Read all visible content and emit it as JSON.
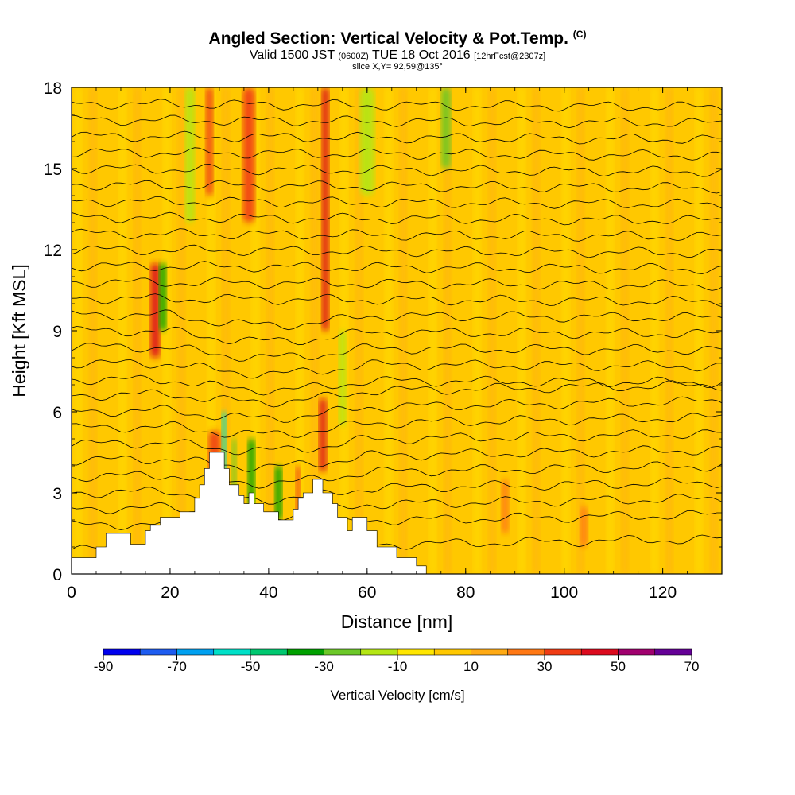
{
  "header": {
    "title": "Angled Section: Vertical Velocity & Pot.Temp.",
    "title_unit": "(C)",
    "subtitle_main_a": "Valid 1500 JST",
    "subtitle_small_a": "(0600Z)",
    "subtitle_main_b": "TUE 18 Oct 2016",
    "subtitle_small_b": "[12hrFcst@2307z]",
    "slice": "slice X,Y= 92,59@135°"
  },
  "chart_data": {
    "type": "heatmap",
    "title": "Angled Section: Vertical Velocity & Pot.Temp.",
    "xlabel": "Distance [nm]",
    "ylabel": "Height [Kft MSL]",
    "xlim": [
      0,
      132
    ],
    "ylim": [
      0,
      18
    ],
    "x_ticks": [
      "0",
      "20",
      "40",
      "60",
      "80",
      "100",
      "120"
    ],
    "x_tick_values": [
      0,
      20,
      40,
      60,
      80,
      100,
      120
    ],
    "y_ticks": [
      "0",
      "3",
      "6",
      "9",
      "12",
      "15",
      "18"
    ],
    "y_tick_values": [
      0,
      3,
      6,
      9,
      12,
      15,
      18
    ],
    "colorbar": {
      "title": "Vertical Velocity [cm/s]",
      "labels": [
        "-90",
        "-70",
        "-50",
        "-30",
        "-10",
        "10",
        "30",
        "50",
        "70"
      ],
      "label_values": [
        -90,
        -70,
        -50,
        -30,
        -10,
        10,
        30,
        50,
        70
      ],
      "bins": [
        {
          "from": -90,
          "to": -80,
          "color": "#0000ee"
        },
        {
          "from": -80,
          "to": -70,
          "color": "#1e5cf0"
        },
        {
          "from": -70,
          "to": -60,
          "color": "#00a0f0"
        },
        {
          "from": -60,
          "to": -50,
          "color": "#00e0c8"
        },
        {
          "from": -50,
          "to": -40,
          "color": "#00c870"
        },
        {
          "from": -40,
          "to": -30,
          "color": "#00a000"
        },
        {
          "from": -30,
          "to": -20,
          "color": "#6cc828"
        },
        {
          "from": -20,
          "to": -10,
          "color": "#b4e614"
        },
        {
          "from": -10,
          "to": 0,
          "color": "#ffe600"
        },
        {
          "from": 0,
          "to": 10,
          "color": "#ffc800"
        },
        {
          "from": 10,
          "to": 20,
          "color": "#ffaa14"
        },
        {
          "from": 20,
          "to": 30,
          "color": "#ff7814"
        },
        {
          "from": 30,
          "to": 40,
          "color": "#f03c14"
        },
        {
          "from": 40,
          "to": 50,
          "color": "#dc0a1e"
        },
        {
          "from": 50,
          "to": 60,
          "color": "#a0006e"
        },
        {
          "from": 60,
          "to": 70,
          "color": "#640096"
        }
      ]
    },
    "background_value_color": "#ffc800",
    "features": [
      {
        "x": 17,
        "y0": 8.0,
        "y1": 11.5,
        "w": 2.0,
        "value": 45
      },
      {
        "x": 18.5,
        "y0": 9.0,
        "y1": 11.5,
        "w": 1.5,
        "value": -35
      },
      {
        "x": 24,
        "y0": 13.0,
        "y1": 18,
        "w": 2.0,
        "value": -15
      },
      {
        "x": 28,
        "y0": 14.0,
        "y1": 18,
        "w": 1.5,
        "value": 35
      },
      {
        "x": 29,
        "y0": 2.5,
        "y1": 5.3,
        "w": 2.5,
        "value": 35
      },
      {
        "x": 31,
        "y0": 3.5,
        "y1": 6.0,
        "w": 1.0,
        "value": -60
      },
      {
        "x": 33,
        "y0": 2.5,
        "y1": 5.0,
        "w": 1.0,
        "value": -25
      },
      {
        "x": 36.5,
        "y0": 2.5,
        "y1": 5.0,
        "w": 1.5,
        "value": -40
      },
      {
        "x": 36,
        "y0": 13.0,
        "y1": 18,
        "w": 2.5,
        "value": 35
      },
      {
        "x": 42,
        "y0": 2.0,
        "y1": 4.0,
        "w": 1.5,
        "value": -35
      },
      {
        "x": 46,
        "y0": 2.0,
        "y1": 4.0,
        "w": 1.0,
        "value": 35
      },
      {
        "x": 51,
        "y0": 3.8,
        "y1": 6.5,
        "w": 1.5,
        "value": 45
      },
      {
        "x": 51.5,
        "y0": 9.0,
        "y1": 18,
        "w": 1.5,
        "value": 40
      },
      {
        "x": 55,
        "y0": 5.5,
        "y1": 9.0,
        "w": 1.5,
        "value": -15
      },
      {
        "x": 60,
        "y0": 14.0,
        "y1": 18,
        "w": 3.0,
        "value": -20
      },
      {
        "x": 76,
        "y0": 15.0,
        "y1": 18,
        "w": 2.0,
        "value": -25
      },
      {
        "x": 88,
        "y0": 1.5,
        "y1": 3.5,
        "w": 1.5,
        "value": 25
      },
      {
        "x": 104,
        "y0": 1.0,
        "y1": 2.5,
        "w": 1.5,
        "value": 25
      }
    ],
    "terrain": [
      [
        0,
        0
      ],
      [
        0,
        0.6
      ],
      [
        5,
        0.6
      ],
      [
        5,
        1.0
      ],
      [
        7,
        1.0
      ],
      [
        7,
        1.5
      ],
      [
        12,
        1.5
      ],
      [
        12,
        1.1
      ],
      [
        15,
        1.1
      ],
      [
        15,
        1.6
      ],
      [
        16,
        1.6
      ],
      [
        16,
        1.8
      ],
      [
        18,
        1.8
      ],
      [
        18,
        2.1
      ],
      [
        22,
        2.1
      ],
      [
        22,
        2.3
      ],
      [
        25,
        2.3
      ],
      [
        25,
        2.8
      ],
      [
        26,
        2.8
      ],
      [
        26,
        3.3
      ],
      [
        27,
        3.3
      ],
      [
        27,
        3.9
      ],
      [
        28,
        3.9
      ],
      [
        28,
        4.5
      ],
      [
        31,
        4.5
      ],
      [
        31,
        3.9
      ],
      [
        32,
        3.9
      ],
      [
        32,
        3.3
      ],
      [
        34,
        3.3
      ],
      [
        34,
        2.9
      ],
      [
        35,
        2.9
      ],
      [
        35,
        2.6
      ],
      [
        36,
        2.6
      ],
      [
        36,
        3.0
      ],
      [
        37,
        3.0
      ],
      [
        37,
        2.6
      ],
      [
        39,
        2.6
      ],
      [
        39,
        2.3
      ],
      [
        42,
        2.3
      ],
      [
        42,
        2.0
      ],
      [
        45,
        2.0
      ],
      [
        45,
        2.4
      ],
      [
        46,
        2.4
      ],
      [
        46,
        2.8
      ],
      [
        47,
        2.8
      ],
      [
        47,
        3.0
      ],
      [
        49,
        3.0
      ],
      [
        49,
        3.5
      ],
      [
        51,
        3.5
      ],
      [
        51,
        3.0
      ],
      [
        53,
        3.0
      ],
      [
        53,
        2.6
      ],
      [
        54,
        2.6
      ],
      [
        54,
        2.1
      ],
      [
        56,
        2.1
      ],
      [
        56,
        1.6
      ],
      [
        57,
        1.6
      ],
      [
        57,
        2.1
      ],
      [
        60,
        2.1
      ],
      [
        60,
        1.6
      ],
      [
        62,
        1.6
      ],
      [
        62,
        1.0
      ],
      [
        66,
        1.0
      ],
      [
        66,
        0.6
      ],
      [
        70,
        0.6
      ],
      [
        70,
        0.3
      ],
      [
        72,
        0.3
      ],
      [
        72,
        0
      ],
      [
        0,
        0
      ]
    ],
    "contour_levels_y": [
      0.9,
      1.8,
      2.4,
      3.0,
      3.6,
      4.2,
      4.8,
      5.4,
      6.0,
      6.6,
      7.2,
      7.8,
      8.4,
      9.0,
      9.6,
      10.2,
      10.8,
      11.4,
      12.0,
      12.6,
      13.2,
      13.8,
      14.4,
      15.0,
      15.6,
      16.2,
      16.8,
      17.4
    ]
  }
}
